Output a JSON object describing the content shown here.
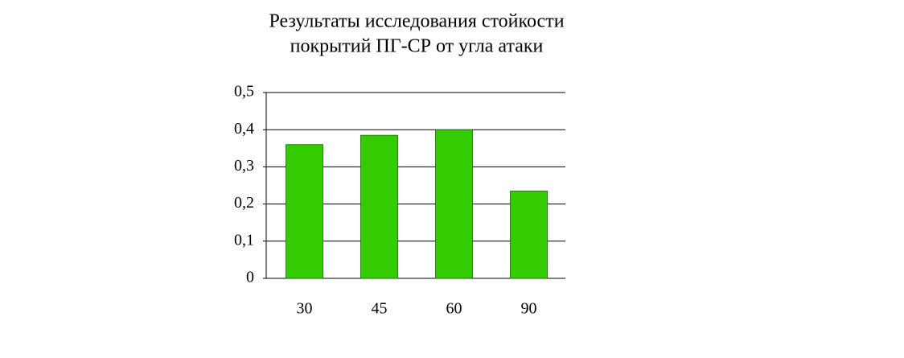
{
  "chart_data": {
    "type": "bar",
    "title": [
      "Результаты исследования стойкости",
      "покрытий ПГ-СР от угла атаки"
    ],
    "categories": [
      "30",
      "45",
      "60",
      "90"
    ],
    "values": [
      0.36,
      0.385,
      0.4,
      0.235
    ],
    "color": "#33cc00",
    "ylim": [
      0,
      0.5
    ],
    "yticks": [
      0,
      {
        "value": 0.1,
        "label": "0,1"
      },
      {
        "value": 0.2,
        "label": "0,2"
      },
      {
        "value": 0.3,
        "label": "0,3"
      },
      {
        "value": 0.4,
        "label": "0,4"
      },
      {
        "value": 0.5,
        "label": "0,5"
      }
    ],
    "grid": true
  }
}
